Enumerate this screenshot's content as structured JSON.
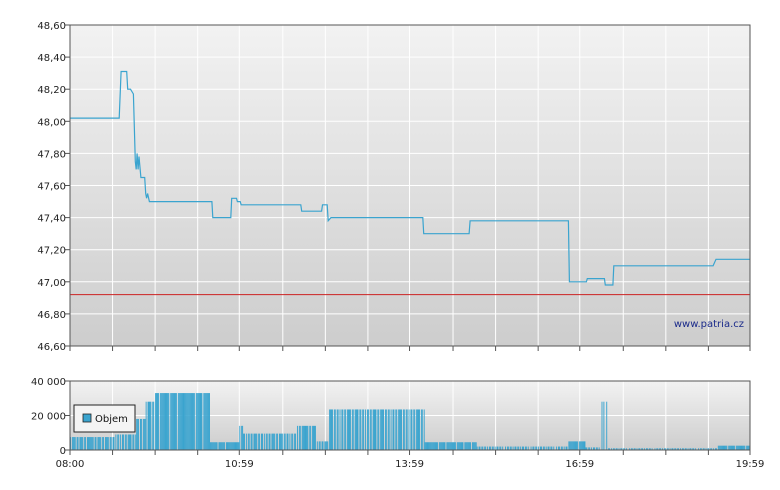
{
  "chart_data": [
    {
      "type": "line",
      "title": "",
      "xlabel": "",
      "ylabel": "",
      "ylim": [
        46.6,
        48.6
      ],
      "y_ticks": [
        "46,60",
        "46,80",
        "47,00",
        "47,20",
        "47,40",
        "47,60",
        "47,80",
        "48,00",
        "48,20",
        "48,40",
        "48,60"
      ],
      "grid": true,
      "watermark": "www.patria.cz",
      "reference_line": {
        "value": 46.92,
        "color": "#cc2222"
      },
      "line_color": "#3aa4cf",
      "series": [
        {
          "points": [
            [
              "08:00",
              48.02
            ],
            [
              "08:52",
              48.02
            ],
            [
              "08:54",
              48.31
            ],
            [
              "09:00",
              48.31
            ],
            [
              "09:01",
              48.2
            ],
            [
              "09:04",
              48.2
            ],
            [
              "09:07",
              48.17
            ],
            [
              "09:09",
              47.75
            ],
            [
              "09:10",
              47.7
            ],
            [
              "09:11",
              47.8
            ],
            [
              "09:12",
              47.7
            ],
            [
              "09:13",
              47.78
            ],
            [
              "09:15",
              47.65
            ],
            [
              "09:19",
              47.65
            ],
            [
              "09:20",
              47.55
            ],
            [
              "09:21",
              47.52
            ],
            [
              "09:22",
              47.55
            ],
            [
              "09:24",
              47.5
            ],
            [
              "09:25",
              47.5
            ],
            [
              "10:30",
              47.5
            ],
            [
              "10:31",
              47.4
            ],
            [
              "10:50",
              47.4
            ],
            [
              "10:51",
              47.52
            ],
            [
              "10:56",
              47.52
            ],
            [
              "10:57",
              47.5
            ],
            [
              "11:00",
              47.5
            ],
            [
              "11:01",
              47.48
            ],
            [
              "12:04",
              47.48
            ],
            [
              "12:05",
              47.44
            ],
            [
              "12:26",
              47.44
            ],
            [
              "12:27",
              47.48
            ],
            [
              "12:32",
              47.48
            ],
            [
              "12:33",
              47.38
            ],
            [
              "12:36",
              47.4
            ],
            [
              "14:13",
              47.4
            ],
            [
              "14:14",
              47.3
            ],
            [
              "15:02",
              47.3
            ],
            [
              "15:03",
              47.38
            ],
            [
              "16:47",
              47.38
            ],
            [
              "16:48",
              47.0
            ],
            [
              "17:06",
              47.0
            ],
            [
              "17:07",
              47.02
            ],
            [
              "17:25",
              47.02
            ],
            [
              "17:26",
              46.98
            ],
            [
              "17:34",
              46.98
            ],
            [
              "17:35",
              47.1
            ],
            [
              "19:20",
              47.1
            ],
            [
              "19:23",
              47.14
            ],
            [
              "19:59",
              47.14
            ]
          ]
        }
      ]
    },
    {
      "type": "bar",
      "title": "",
      "xlabel": "",
      "ylabel": "",
      "ylim": [
        0,
        40000
      ],
      "y_ticks": [
        "0",
        "20 000",
        "40 000"
      ],
      "x_ticks": [
        "08:00",
        "10:59",
        "13:59",
        "16:59",
        "19:59"
      ],
      "x_range": [
        "08:00",
        "19:59"
      ],
      "grid": true,
      "bar_color": "#3aa4cf",
      "legend": {
        "label": "Objem",
        "placement": "left"
      },
      "series": [
        {
          "name": "Objem",
          "segments": [
            {
              "from": "08:00",
              "to": "08:48",
              "value": 7500,
              "density": 0.75
            },
            {
              "from": "08:48",
              "to": "09:10",
              "value": 9000,
              "density": 0.7
            },
            {
              "from": "09:10",
              "to": "09:20",
              "value": 18000,
              "density": 0.8
            },
            {
              "from": "09:20",
              "to": "09:30",
              "value": 28000,
              "density": 0.8
            },
            {
              "from": "09:30",
              "to": "10:28",
              "value": 33000,
              "density": 0.9
            },
            {
              "from": "10:28",
              "to": "10:59",
              "value": 4500,
              "density": 0.9
            },
            {
              "from": "10:59",
              "to": "11:03",
              "value": 14000,
              "density": 0.8
            },
            {
              "from": "11:03",
              "to": "12:00",
              "value": 9500,
              "density": 0.7
            },
            {
              "from": "12:00",
              "to": "12:20",
              "value": 14000,
              "density": 0.8
            },
            {
              "from": "12:20",
              "to": "12:33",
              "value": 5000,
              "density": 0.7
            },
            {
              "from": "12:33",
              "to": "14:15",
              "value": 23500,
              "density": 0.7
            },
            {
              "from": "14:15",
              "to": "15:10",
              "value": 4500,
              "density": 0.9
            },
            {
              "from": "15:10",
              "to": "16:47",
              "value": 2000,
              "density": 0.6
            },
            {
              "from": "16:47",
              "to": "17:05",
              "value": 5000,
              "density": 0.9
            },
            {
              "from": "17:05",
              "to": "17:22",
              "value": 1500,
              "density": 0.6
            },
            {
              "from": "17:22",
              "to": "17:28",
              "value": 28000,
              "density": 0.5
            },
            {
              "from": "17:28",
              "to": "19:25",
              "value": 1000,
              "density": 0.6
            },
            {
              "from": "19:25",
              "to": "19:59",
              "value": 2500,
              "density": 0.9
            }
          ]
        }
      ]
    }
  ]
}
